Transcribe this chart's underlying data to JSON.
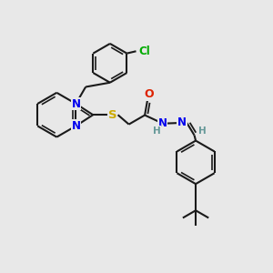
{
  "bg": "#e8e8e8",
  "bc": "#1a1a1a",
  "N_color": "#0000ee",
  "S_color": "#ccaa00",
  "O_color": "#dd2200",
  "Cl_color": "#00aa00",
  "H_color": "#669999",
  "lw": 1.5,
  "lw_inner": 1.2,
  "fs": 8.5,
  "figsize": [
    3.0,
    3.0
  ],
  "dpi": 100,
  "xlim": [
    0,
    10
  ],
  "ylim": [
    0,
    10
  ]
}
